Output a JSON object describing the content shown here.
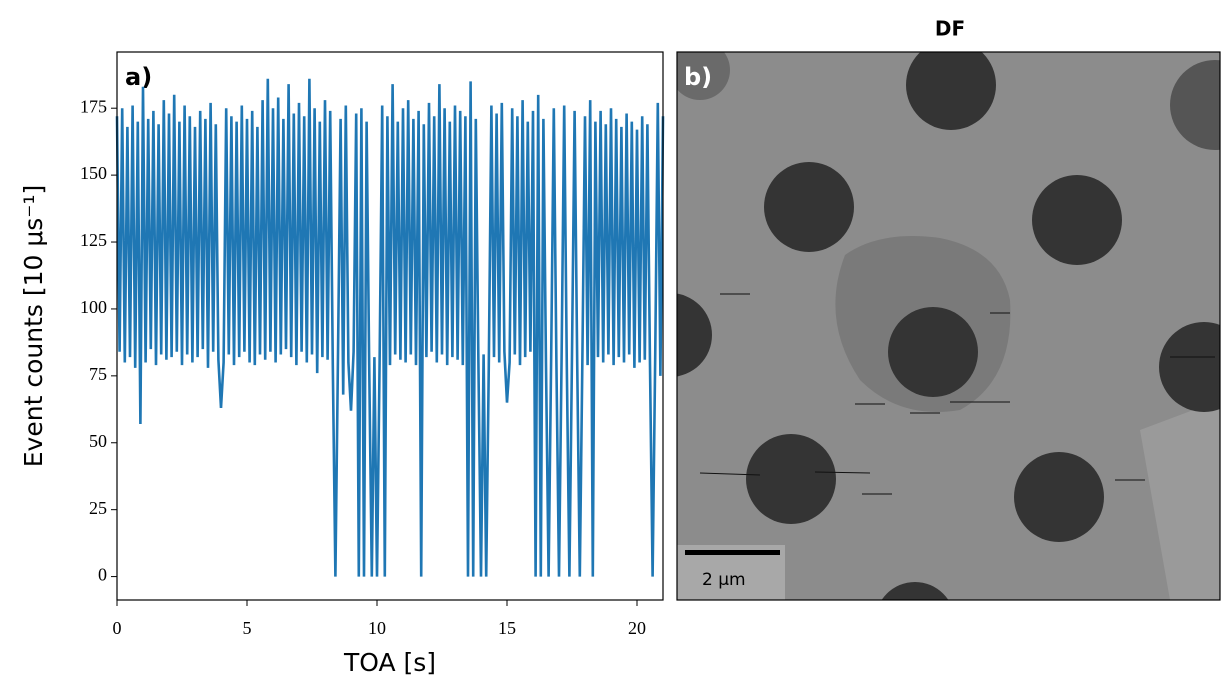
{
  "chart_data": {
    "type": "line",
    "panel_label": "a)",
    "xlabel": "TOA [s]",
    "ylabel": "Event counts [10 μs⁻¹]",
    "color": "#1f77b4",
    "xlim": [
      0,
      21
    ],
    "ylim": [
      -8.75,
      196
    ],
    "xticks": [
      0,
      5,
      10,
      15,
      20
    ],
    "yticks": [
      0,
      25,
      50,
      75,
      100,
      125,
      150,
      175
    ],
    "x": [
      0,
      0.1,
      0.2,
      0.3,
      0.4,
      0.5,
      0.6,
      0.7,
      0.8,
      0.9,
      1,
      1.1,
      1.2,
      1.3,
      1.4,
      1.5,
      1.6,
      1.7,
      1.8,
      1.9,
      2,
      2.1,
      2.2,
      2.3,
      2.4,
      2.5,
      2.6,
      2.7,
      2.8,
      2.9,
      3,
      3.1,
      3.2,
      3.3,
      3.4,
      3.5,
      3.6,
      3.7,
      3.8,
      3.9,
      4,
      4.1,
      4.2,
      4.3,
      4.4,
      4.5,
      4.6,
      4.7,
      4.8,
      4.9,
      5,
      5.1,
      5.2,
      5.3,
      5.4,
      5.5,
      5.6,
      5.7,
      5.8,
      5.9,
      6,
      6.1,
      6.2,
      6.3,
      6.4,
      6.5,
      6.6,
      6.7,
      6.8,
      6.9,
      7,
      7.1,
      7.2,
      7.3,
      7.4,
      7.5,
      7.6,
      7.7,
      7.8,
      7.9,
      8,
      8.1,
      8.2,
      8.3,
      8.4,
      8.5,
      8.6,
      8.7,
      8.8,
      8.9,
      9,
      9.1,
      9.2,
      9.3,
      9.4,
      9.5,
      9.6,
      9.7,
      9.8,
      9.9,
      10,
      10.1,
      10.2,
      10.3,
      10.4,
      10.5,
      10.6,
      10.7,
      10.8,
      10.9,
      11,
      11.1,
      11.2,
      11.3,
      11.4,
      11.5,
      11.6,
      11.7,
      11.8,
      11.9,
      12,
      12.1,
      12.2,
      12.3,
      12.4,
      12.5,
      12.6,
      12.7,
      12.8,
      12.9,
      13,
      13.1,
      13.2,
      13.3,
      13.4,
      13.5,
      13.6,
      13.7,
      13.8,
      13.9,
      14,
      14.1,
      14.2,
      14.3,
      14.4,
      14.5,
      14.6,
      14.7,
      14.8,
      14.9,
      15,
      15.1,
      15.2,
      15.3,
      15.4,
      15.5,
      15.6,
      15.7,
      15.8,
      15.9,
      16,
      16.1,
      16.2,
      16.3,
      16.4,
      16.5,
      16.6,
      16.7,
      16.8,
      16.9,
      17,
      17.1,
      17.2,
      17.3,
      17.4,
      17.5,
      17.6,
      17.7,
      17.8,
      17.9,
      18,
      18.1,
      18.2,
      18.3,
      18.4,
      18.5,
      18.6,
      18.7,
      18.8,
      18.9,
      19,
      19.1,
      19.2,
      19.3,
      19.4,
      19.5,
      19.6,
      19.7,
      19.8,
      19.9,
      20,
      20.1,
      20.2,
      20.3,
      20.4,
      20.5,
      20.6,
      20.7,
      20.8,
      20.9,
      21
    ],
    "values": [
      172,
      84,
      175,
      80,
      168,
      82,
      176,
      78,
      170,
      57,
      183,
      80,
      171,
      85,
      174,
      79,
      169,
      83,
      178,
      81,
      173,
      82,
      180,
      84,
      170,
      79,
      176,
      83,
      172,
      80,
      168,
      82,
      174,
      85,
      171,
      78,
      177,
      84,
      169,
      81,
      63,
      80,
      175,
      83,
      172,
      79,
      170,
      82,
      176,
      84,
      171,
      80,
      174,
      79,
      168,
      83,
      178,
      81,
      186,
      84,
      175,
      80,
      179,
      83,
      171,
      85,
      184,
      82,
      173,
      79,
      177,
      84,
      172,
      80,
      186,
      83,
      175,
      76,
      170,
      82,
      178,
      81,
      174,
      79,
      0,
      83,
      171,
      68,
      176,
      80,
      62,
      84,
      173,
      0,
      175,
      0,
      170,
      79,
      0,
      82,
      0,
      80,
      176,
      0,
      172,
      79,
      184,
      83,
      170,
      81,
      175,
      80,
      178,
      83,
      171,
      79,
      174,
      0,
      169,
      82,
      177,
      84,
      172,
      80,
      184,
      83,
      175,
      79,
      170,
      82,
      176,
      81,
      174,
      79,
      172,
      0,
      185,
      0,
      171,
      80,
      0,
      83,
      0,
      79,
      176,
      82,
      173,
      80,
      177,
      84,
      65,
      80,
      175,
      83,
      172,
      79,
      178,
      82,
      170,
      84,
      174,
      0,
      180,
      0,
      171,
      79,
      0,
      83,
      175,
      80,
      0,
      82,
      176,
      79,
      0,
      83,
      174,
      80,
      0,
      82,
      172,
      79,
      178,
      0,
      170,
      82,
      174,
      80,
      169,
      83,
      175,
      79,
      171,
      82,
      168,
      80,
      173,
      83,
      170,
      78,
      167,
      80,
      172,
      81,
      169,
      79,
      0,
      82,
      177,
      75,
      172
    ]
  },
  "image_panel": {
    "title": "DF",
    "panel_label": "b)",
    "scale_bar": "2 μm"
  }
}
